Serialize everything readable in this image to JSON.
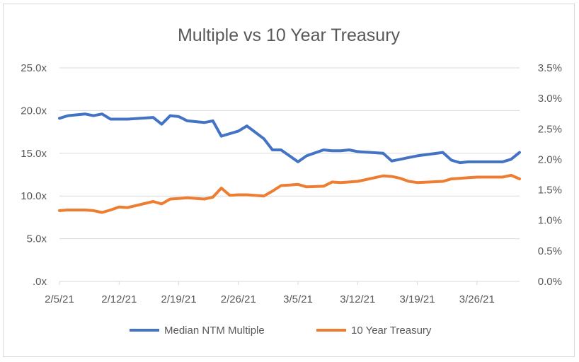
{
  "chart_data": {
    "type": "line",
    "title": "Multiple vs 10 Year Treasury",
    "x_tick_labels": [
      "2/5/21",
      "2/12/21",
      "2/19/21",
      "2/26/21",
      "3/5/21",
      "3/12/21",
      "3/19/21",
      "3/26/21"
    ],
    "y_left": {
      "ylim": [
        0,
        25
      ],
      "tick_labels": [
        ".0x",
        "5.0x",
        "10.0x",
        "15.0x",
        "20.0x",
        "25.0x"
      ]
    },
    "y_right": {
      "ylim": [
        0,
        3.5
      ],
      "tick_labels": [
        "0.0%",
        "0.5%",
        "1.0%",
        "1.5%",
        "2.0%",
        "2.5%",
        "3.0%",
        "3.5%"
      ]
    },
    "grid": "horizontal",
    "legend_position": "bottom",
    "series": [
      {
        "name": "Median NTM Multiple",
        "axis": "left",
        "color": "#4472c4",
        "x": [
          "2/5/21",
          "2/6/21",
          "2/8/21",
          "2/9/21",
          "2/10/21",
          "2/11/21",
          "2/12/21",
          "2/13/21",
          "2/16/21",
          "2/17/21",
          "2/18/21",
          "2/19/21",
          "2/20/21",
          "2/22/21",
          "2/23/21",
          "2/24/21",
          "2/25/21",
          "2/26/21",
          "2/27/21",
          "3/1/21",
          "3/2/21",
          "3/3/21",
          "3/4/21",
          "3/5/21",
          "3/6/21",
          "3/8/21",
          "3/9/21",
          "3/10/21",
          "3/11/21",
          "3/12/21",
          "3/15/21",
          "3/16/21",
          "3/17/21",
          "3/18/21",
          "3/19/21",
          "3/22/21",
          "3/23/21",
          "3/24/21",
          "3/25/21",
          "3/26/21",
          "3/29/21",
          "3/30/21",
          "3/31/21"
        ],
        "values": [
          19.1,
          19.4,
          19.6,
          19.4,
          19.6,
          19.0,
          19.0,
          19.0,
          19.2,
          18.4,
          19.4,
          19.3,
          18.8,
          18.6,
          18.8,
          17.0,
          17.3,
          17.6,
          18.2,
          16.7,
          15.4,
          15.4,
          14.7,
          14.0,
          14.7,
          15.4,
          15.3,
          15.3,
          15.4,
          15.2,
          15.0,
          14.1,
          14.3,
          14.5,
          14.7,
          15.1,
          14.2,
          13.9,
          14.0,
          14.0,
          14.0,
          14.3,
          15.1
        ]
      },
      {
        "name": "10 Year Treasury",
        "axis": "right",
        "color": "#ed7d31",
        "x": [
          "2/5/21",
          "2/6/21",
          "2/8/21",
          "2/9/21",
          "2/10/21",
          "2/11/21",
          "2/12/21",
          "2/13/21",
          "2/16/21",
          "2/17/21",
          "2/18/21",
          "2/19/21",
          "2/20/21",
          "2/22/21",
          "2/23/21",
          "2/24/21",
          "2/25/21",
          "2/26/21",
          "2/27/21",
          "3/1/21",
          "3/2/21",
          "3/3/21",
          "3/4/21",
          "3/5/21",
          "3/6/21",
          "3/8/21",
          "3/9/21",
          "3/10/21",
          "3/11/21",
          "3/12/21",
          "3/15/21",
          "3/16/21",
          "3/17/21",
          "3/18/21",
          "3/19/21",
          "3/22/21",
          "3/23/21",
          "3/24/21",
          "3/25/21",
          "3/26/21",
          "3/29/21",
          "3/30/21",
          "3/31/21"
        ],
        "values": [
          1.16,
          1.17,
          1.17,
          1.16,
          1.13,
          1.17,
          1.22,
          1.21,
          1.31,
          1.27,
          1.35,
          1.36,
          1.37,
          1.35,
          1.38,
          1.53,
          1.41,
          1.42,
          1.42,
          1.4,
          1.48,
          1.57,
          1.58,
          1.59,
          1.55,
          1.56,
          1.63,
          1.62,
          1.63,
          1.64,
          1.73,
          1.72,
          1.69,
          1.64,
          1.62,
          1.64,
          1.68,
          1.69,
          1.7,
          1.71,
          1.71,
          1.74,
          1.68
        ]
      }
    ]
  }
}
